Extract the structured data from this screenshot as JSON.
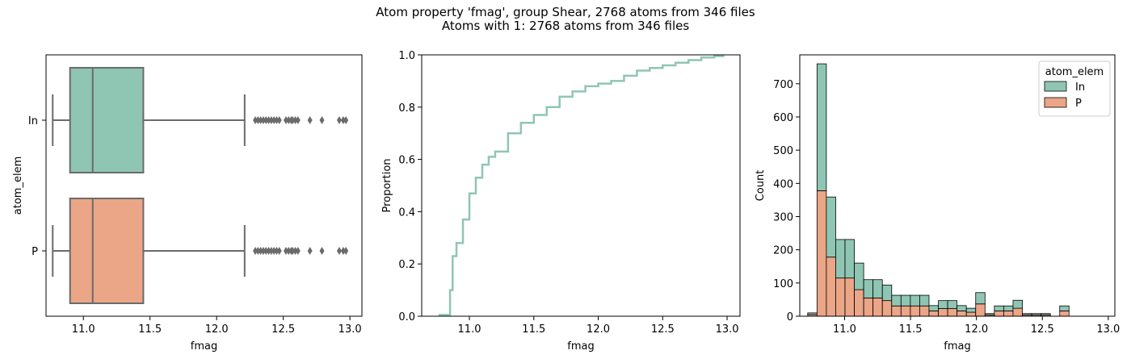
{
  "figure": {
    "title_line1": "Atom property 'fmag', group Shear, 2768 atoms from 346 files",
    "title_line2": "Atoms with 1: 2768 atoms from 346 files"
  },
  "colors": {
    "In": "#8fc6b3",
    "P": "#eba587",
    "edge": "#6b6b6b",
    "ecdf": "#8fc6b3"
  },
  "chart_data": [
    {
      "type": "box",
      "xlabel": "fmag",
      "ylabel": "atom_elem",
      "xlim": [
        10.72,
        13.09
      ],
      "xticks": [
        11.0,
        11.5,
        12.0,
        12.5,
        13.0
      ],
      "xtick_labels": [
        "11.0",
        "11.5",
        "12.0",
        "12.5",
        "13.0"
      ],
      "categories": [
        "In",
        "P"
      ],
      "series": [
        {
          "name": "In",
          "min": 10.77,
          "q1": 10.9,
          "median": 11.07,
          "q3": 11.45,
          "whisker_high": 12.21,
          "outliers": [
            12.29,
            12.31,
            12.33,
            12.35,
            12.37,
            12.39,
            12.41,
            12.43,
            12.45,
            12.47,
            12.52,
            12.54,
            12.56,
            12.57,
            12.59,
            12.61,
            12.7,
            12.79,
            12.92,
            12.95,
            12.97
          ]
        },
        {
          "name": "P",
          "min": 10.77,
          "q1": 10.9,
          "median": 11.07,
          "q3": 11.45,
          "whisker_high": 12.21,
          "outliers": [
            12.29,
            12.31,
            12.33,
            12.35,
            12.37,
            12.39,
            12.41,
            12.43,
            12.45,
            12.47,
            12.52,
            12.54,
            12.56,
            12.57,
            12.59,
            12.61,
            12.7,
            12.79,
            12.92,
            12.95,
            12.97
          ]
        }
      ]
    },
    {
      "type": "line",
      "xlabel": "fmag",
      "ylabel": "Proportion",
      "xlim": [
        10.63,
        13.1
      ],
      "ylim": [
        0.0,
        1.0
      ],
      "xticks": [
        11.0,
        11.5,
        12.0,
        12.5,
        13.0
      ],
      "xtick_labels": [
        "11.0",
        "11.5",
        "12.0",
        "12.5",
        "13.0"
      ],
      "yticks": [
        0.0,
        0.2,
        0.4,
        0.6,
        0.8,
        1.0
      ],
      "ytick_labels": [
        "0.0",
        "0.2",
        "0.4",
        "0.6",
        "0.8",
        "1.0"
      ],
      "series": [
        {
          "name": "ecdf",
          "x": [
            10.76,
            10.84,
            10.85,
            10.87,
            10.9,
            10.95,
            11.0,
            11.05,
            11.1,
            11.15,
            11.2,
            11.3,
            11.4,
            11.5,
            11.6,
            11.7,
            11.8,
            11.9,
            12.0,
            12.1,
            12.2,
            12.3,
            12.4,
            12.5,
            12.6,
            12.7,
            12.8,
            12.9,
            12.97
          ],
          "y": [
            0.005,
            0.005,
            0.1,
            0.23,
            0.28,
            0.37,
            0.47,
            0.53,
            0.58,
            0.61,
            0.63,
            0.7,
            0.74,
            0.77,
            0.8,
            0.84,
            0.86,
            0.88,
            0.89,
            0.9,
            0.92,
            0.94,
            0.95,
            0.96,
            0.97,
            0.98,
            0.99,
            0.995,
            1.0
          ]
        }
      ]
    },
    {
      "type": "bar",
      "stacked": true,
      "xlabel": "fmag",
      "ylabel": "Count",
      "xlim": [
        10.66,
        13.05
      ],
      "ylim": [
        0,
        787
      ],
      "xticks": [
        11.0,
        11.5,
        12.0,
        12.5,
        13.0
      ],
      "xtick_labels": [
        "11.0",
        "11.5",
        "12.0",
        "12.5",
        "13.0"
      ],
      "yticks": [
        0,
        100,
        200,
        300,
        400,
        500,
        600,
        700
      ],
      "ytick_labels": [
        "0",
        "100",
        "200",
        "300",
        "400",
        "500",
        "600",
        "700"
      ],
      "legend": {
        "title": "atom_elem",
        "position": "top-right"
      },
      "bin_start": 10.72,
      "bin_width": 0.0708,
      "series": [
        {
          "name": "P",
          "values": [
            5,
            378,
            178,
            115,
            115,
            80,
            55,
            55,
            47,
            31,
            31,
            31,
            31,
            16,
            23,
            23,
            16,
            12,
            37,
            4,
            16,
            16,
            24,
            4,
            4,
            4,
            0,
            16
          ]
        },
        {
          "name": "In",
          "values": [
            5,
            382,
            181,
            116,
            116,
            80,
            55,
            55,
            47,
            32,
            32,
            32,
            32,
            16,
            24,
            24,
            16,
            12,
            34,
            4,
            15,
            15,
            24,
            4,
            4,
            4,
            0,
            15
          ]
        }
      ]
    }
  ]
}
